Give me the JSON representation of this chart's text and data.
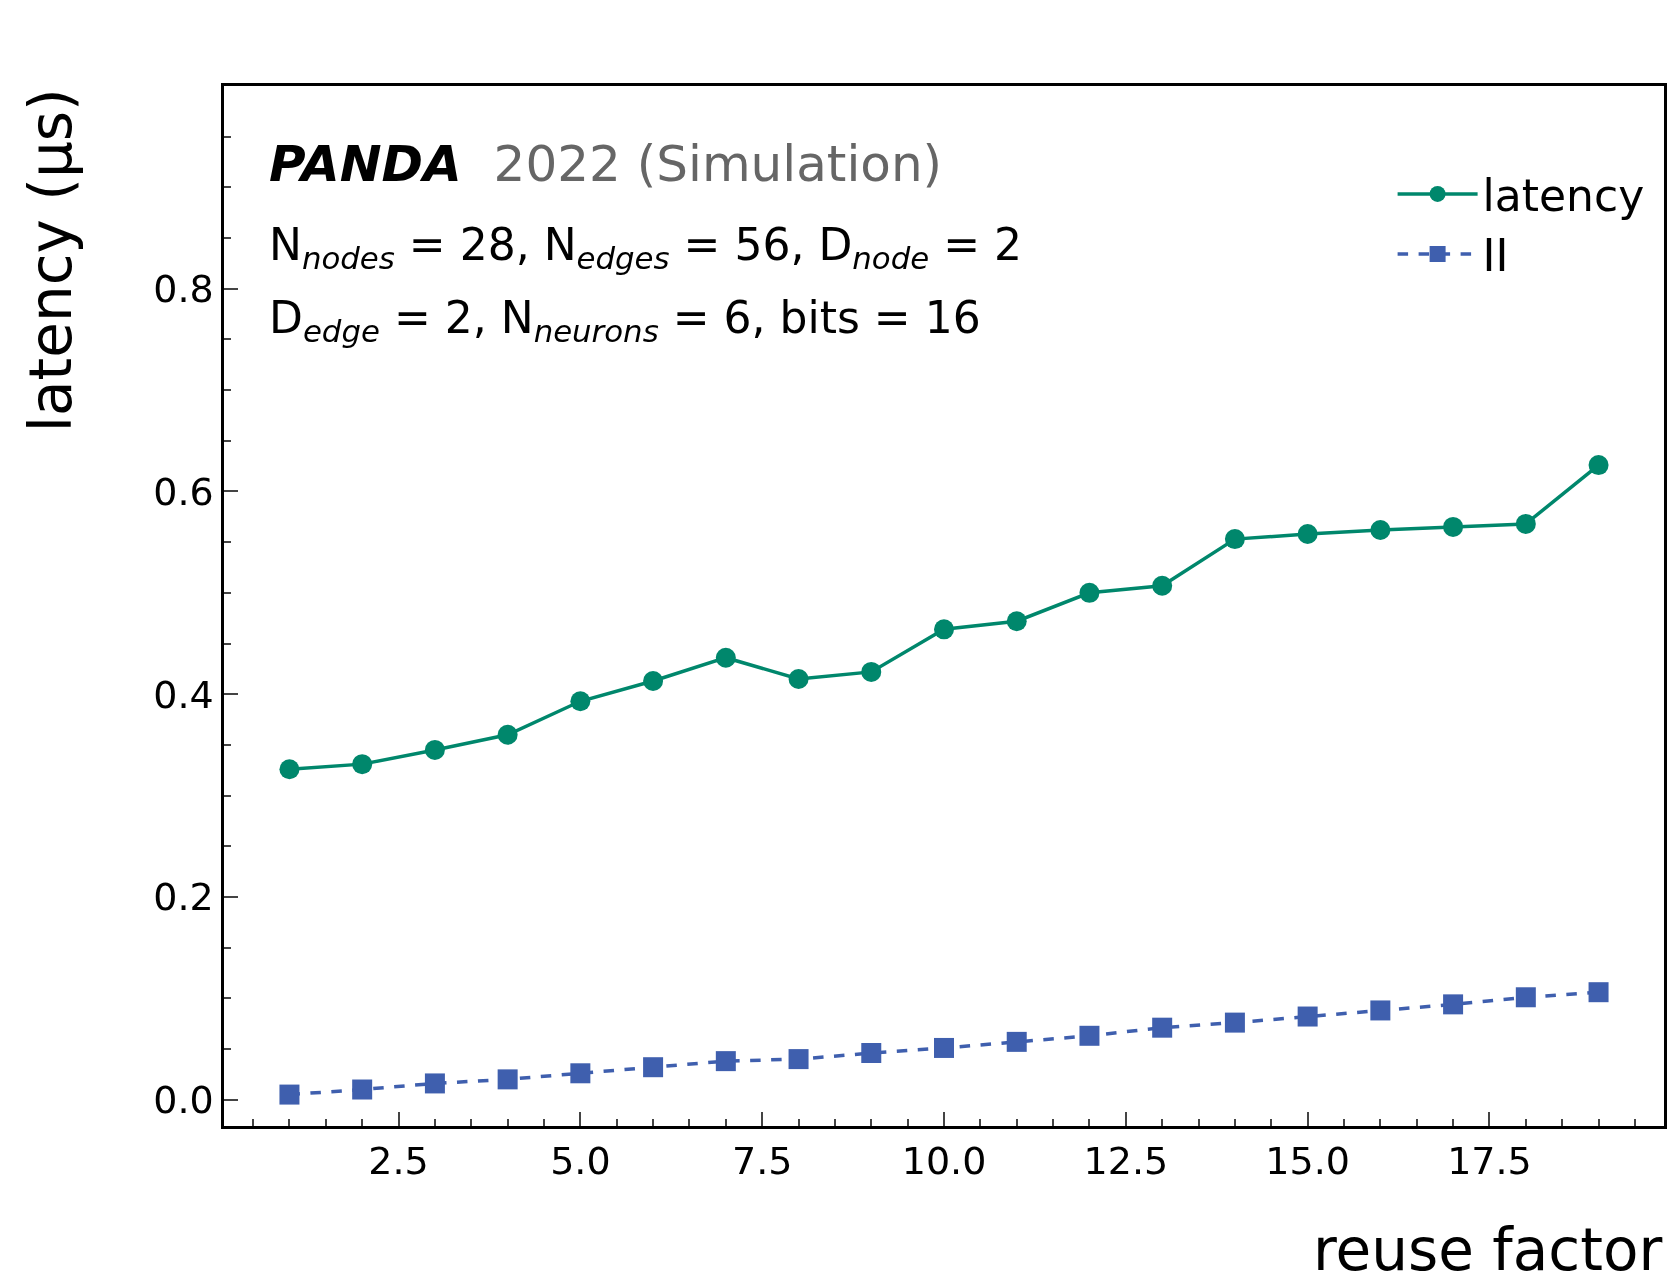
{
  "chart_data": {
    "type": "line",
    "xlabel": "reuse factor",
    "ylabel": "latency (μs)",
    "x": [
      1,
      2,
      3,
      4,
      5,
      6,
      7,
      8,
      9,
      10,
      11,
      12,
      13,
      14,
      15,
      16,
      17,
      18,
      19
    ],
    "series": [
      {
        "name": "latency",
        "color": "#00876c",
        "marker": "circle",
        "line_style": "solid",
        "values": [
          0.326,
          0.331,
          0.345,
          0.36,
          0.393,
          0.413,
          0.436,
          0.415,
          0.422,
          0.464,
          0.472,
          0.5,
          0.507,
          0.553,
          0.558,
          0.562,
          0.565,
          0.568,
          0.626
        ]
      },
      {
        "name": "II",
        "color": "#3f5fae",
        "marker": "square",
        "line_style": "dashed",
        "values": [
          0.005,
          0.01,
          0.016,
          0.02,
          0.026,
          0.032,
          0.038,
          0.04,
          0.046,
          0.051,
          0.057,
          0.063,
          0.071,
          0.076,
          0.082,
          0.088,
          0.094,
          0.101,
          0.106
        ]
      }
    ],
    "xlim": [
      0.1,
      19.9
    ],
    "ylim": [
      -0.026,
      1.0
    ],
    "xticks": [
      2.5,
      {
        "value": 5.0,
        "label": "5.0"
      },
      7.5,
      {
        "value": 10.0,
        "label": "10.0"
      },
      12.5,
      {
        "value": 15.0,
        "label": "15.0"
      },
      17.5
    ],
    "yticks": [
      {
        "value": 0,
        "label": "0.0"
      },
      0.2,
      0.4,
      0.6,
      0.8
    ],
    "legend": "top right",
    "annotations": [
      "PANDA",
      "2022 (Simulation)",
      "N$_{nodes}$ = 28, N$_{edges}$ = 56, D$_{node}$ = 2",
      "D$_{edge}$ = 2, N$_{neurons}$ = 6, bits = 16"
    ]
  }
}
